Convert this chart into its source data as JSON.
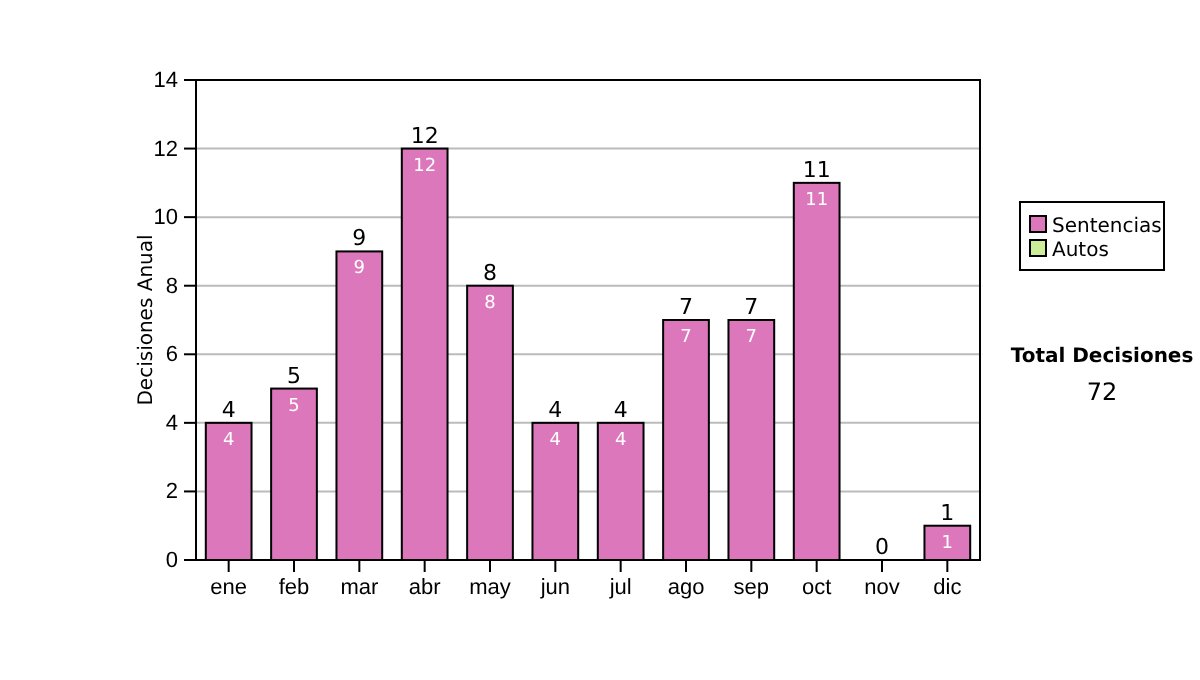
{
  "chart_data": {
    "type": "bar",
    "stacked": true,
    "ylabel": "Decisiones Anual",
    "categories": [
      "ene",
      "feb",
      "mar",
      "abr",
      "may",
      "jun",
      "jul",
      "ago",
      "sep",
      "oct",
      "nov",
      "dic"
    ],
    "series": [
      {
        "name": "Sentencias",
        "color": "#dd77bb",
        "values": [
          4,
          5,
          9,
          12,
          8,
          4,
          4,
          7,
          7,
          11,
          0,
          1
        ],
        "value_labels": [
          "4",
          "5",
          "9",
          "12",
          "8",
          "4",
          "4",
          "7",
          "7",
          "11",
          null,
          "1"
        ]
      },
      {
        "name": "Autos",
        "color": "#ccee99",
        "values": [
          0,
          0,
          0,
          0,
          0,
          0,
          0,
          0,
          0,
          0,
          0,
          0
        ]
      }
    ],
    "totals": [
      "4",
      "5",
      "9",
      "12",
      "8",
      "4",
      "4",
      "7",
      "7",
      "11",
      "0",
      "1"
    ],
    "ylim": [
      0,
      14
    ],
    "yticks": [
      0,
      2,
      4,
      6,
      8,
      10,
      12,
      14
    ],
    "grid": "y",
    "legend": "right",
    "annotations": [
      "Total Decisiones",
      "72"
    ]
  }
}
